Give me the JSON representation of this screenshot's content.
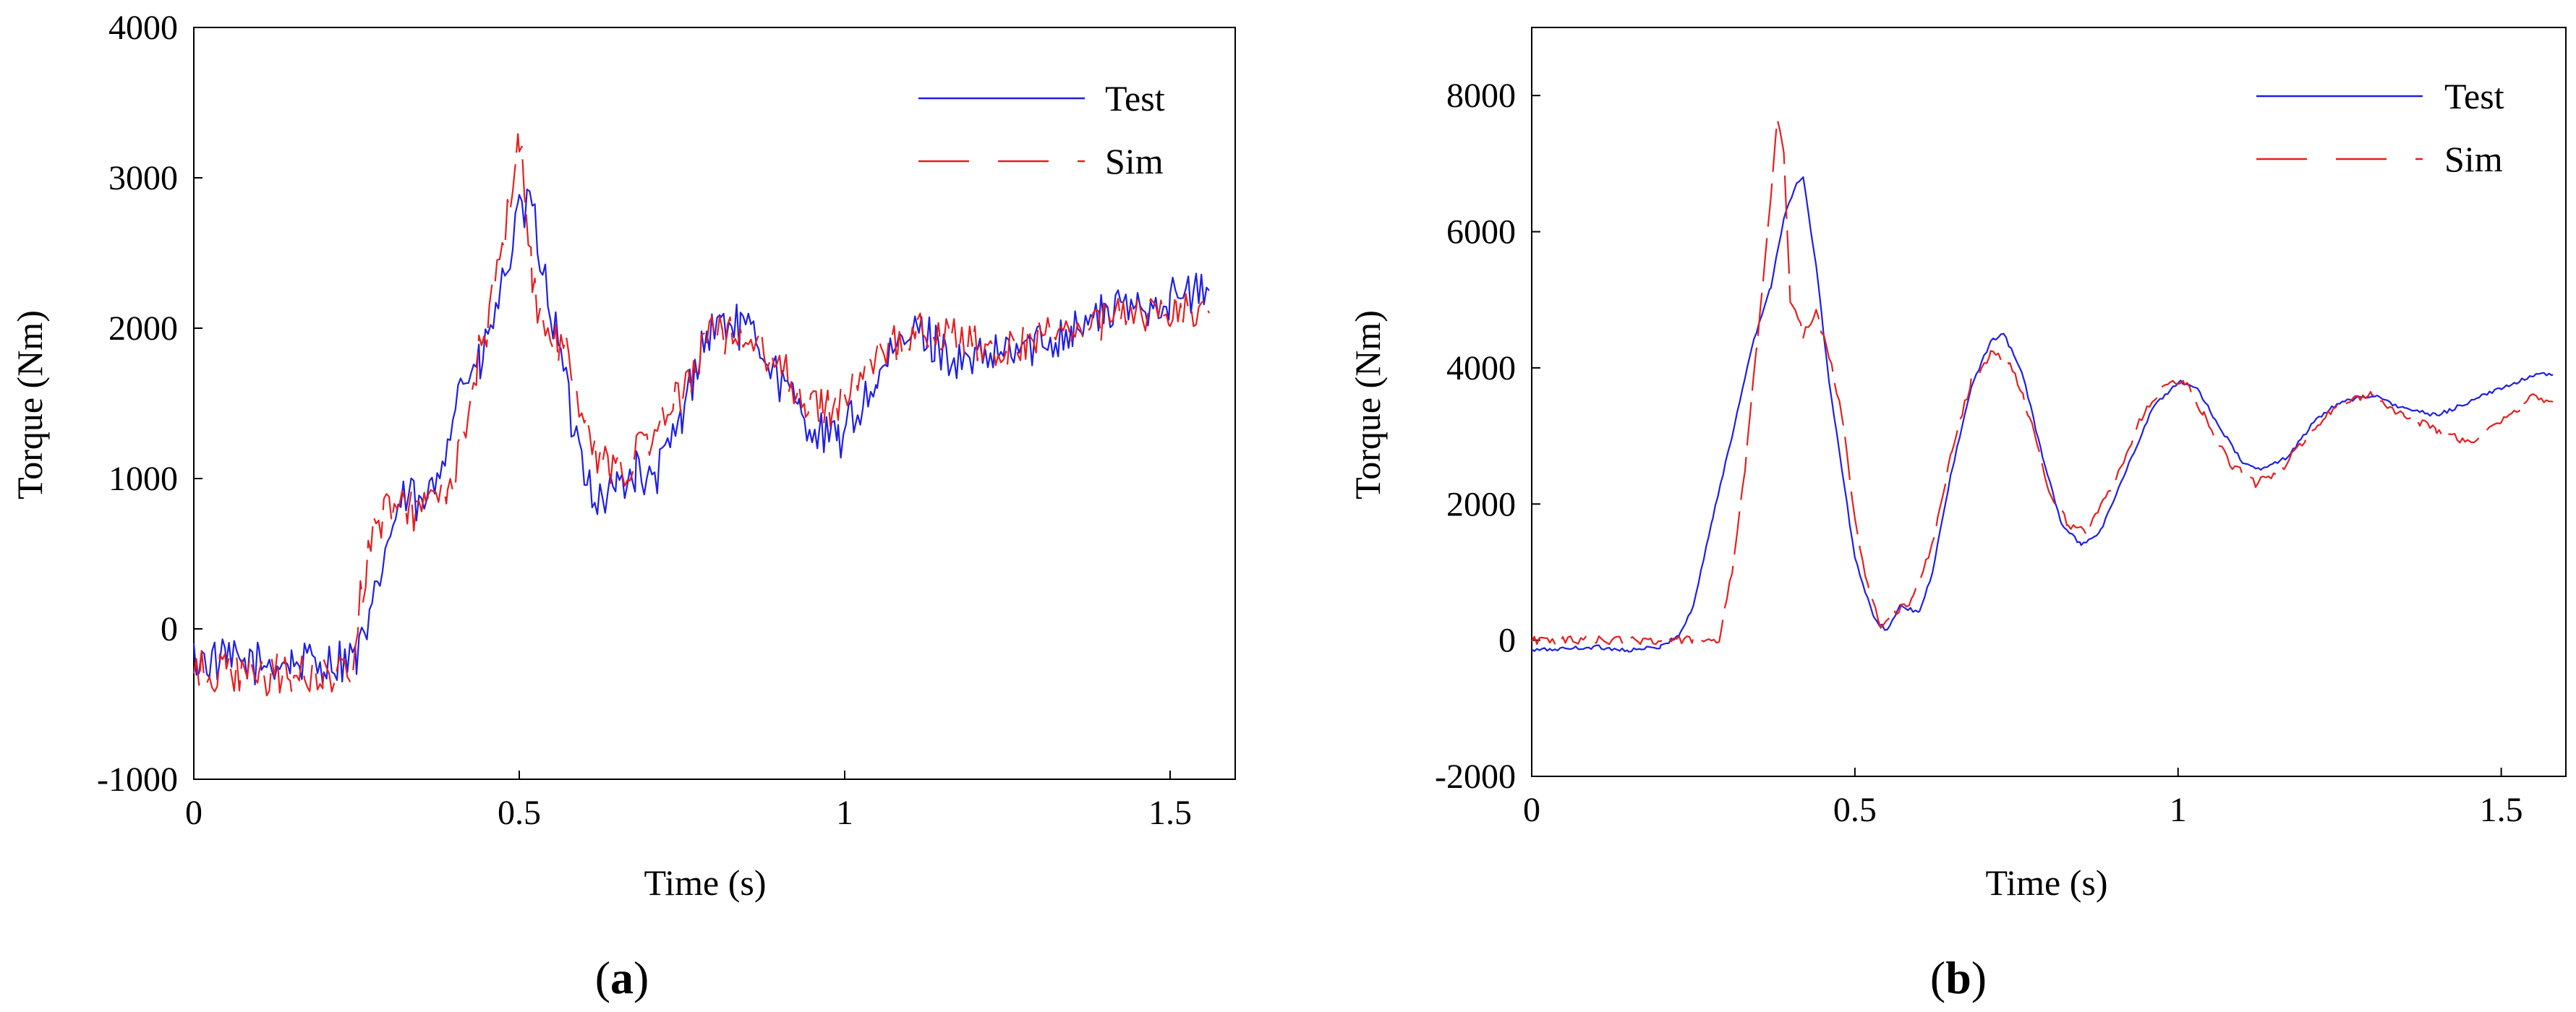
{
  "chart_data": [
    {
      "type": "line",
      "panel": "a",
      "panel_label": {
        "open": "(",
        "letter": "a",
        "close": ")"
      },
      "xlabel": "Time (s)",
      "ylabel": "Torque (Nm)",
      "xlim": [
        0,
        1.6
      ],
      "ylim": [
        -1000,
        4000
      ],
      "xticks": [
        0,
        0.5,
        1,
        1.5
      ],
      "xtick_labels": [
        "0",
        "0.5",
        "1",
        "1.5"
      ],
      "yticks": [
        -1000,
        0,
        1000,
        2000,
        3000,
        4000
      ],
      "ytick_labels": [
        "-1000",
        "0",
        "1000",
        "2000",
        "3000",
        "4000"
      ],
      "legend": {
        "position": "top-right",
        "entries": [
          "Test",
          "Sim"
        ]
      },
      "series": [
        {
          "name": "Test",
          "color": "#1f1fe6",
          "style": "solid",
          "noise": 150,
          "points": [
            [
              0,
              -200
            ],
            [
              0.05,
              -220
            ],
            [
              0.1,
              -230
            ],
            [
              0.15,
              -220
            ],
            [
              0.2,
              -230
            ],
            [
              0.25,
              -180
            ],
            [
              0.27,
              0
            ],
            [
              0.29,
              450
            ],
            [
              0.31,
              750
            ],
            [
              0.33,
              900
            ],
            [
              0.35,
              780
            ],
            [
              0.37,
              950
            ],
            [
              0.39,
              1300
            ],
            [
              0.41,
              1650
            ],
            [
              0.44,
              1750
            ],
            [
              0.47,
              2200
            ],
            [
              0.5,
              2750
            ],
            [
              0.52,
              2800
            ],
            [
              0.54,
              2300
            ],
            [
              0.56,
              1900
            ],
            [
              0.58,
              1400
            ],
            [
              0.6,
              1100
            ],
            [
              0.62,
              850
            ],
            [
              0.65,
              950
            ],
            [
              0.68,
              1050
            ],
            [
              0.7,
              950
            ],
            [
              0.72,
              1100
            ],
            [
              0.75,
              1400
            ],
            [
              0.78,
              1900
            ],
            [
              0.81,
              2050
            ],
            [
              0.84,
              2000
            ],
            [
              0.87,
              1900
            ],
            [
              0.9,
              1650
            ],
            [
              0.93,
              1450
            ],
            [
              0.96,
              1300
            ],
            [
              0.99,
              1250
            ],
            [
              1.02,
              1450
            ],
            [
              1.05,
              1650
            ],
            [
              1.08,
              1850
            ],
            [
              1.11,
              2000
            ],
            [
              1.14,
              1900
            ],
            [
              1.18,
              1750
            ],
            [
              1.22,
              1800
            ],
            [
              1.26,
              1850
            ],
            [
              1.3,
              1900
            ],
            [
              1.35,
              2000
            ],
            [
              1.4,
              2100
            ],
            [
              1.45,
              2150
            ],
            [
              1.5,
              2200
            ],
            [
              1.56,
              2250
            ]
          ]
        },
        {
          "name": "Sim",
          "color": "#e61f1f",
          "style": "dash",
          "noise": 140,
          "points": [
            [
              0,
              -280
            ],
            [
              0.05,
              -300
            ],
            [
              0.1,
              -320
            ],
            [
              0.15,
              -300
            ],
            [
              0.2,
              -320
            ],
            [
              0.24,
              -300
            ],
            [
              0.26,
              300
            ],
            [
              0.28,
              700
            ],
            [
              0.3,
              800
            ],
            [
              0.33,
              780
            ],
            [
              0.36,
              800
            ],
            [
              0.39,
              900
            ],
            [
              0.41,
              1200
            ],
            [
              0.43,
              1700
            ],
            [
              0.45,
              2000
            ],
            [
              0.47,
              2400
            ],
            [
              0.49,
              3000
            ],
            [
              0.5,
              3300
            ],
            [
              0.51,
              2900
            ],
            [
              0.52,
              2300
            ],
            [
              0.54,
              1950
            ],
            [
              0.56,
              1900
            ],
            [
              0.58,
              1800
            ],
            [
              0.6,
              1350
            ],
            [
              0.62,
              1100
            ],
            [
              0.65,
              1050
            ],
            [
              0.68,
              1150
            ],
            [
              0.72,
              1350
            ],
            [
              0.76,
              1650
            ],
            [
              0.8,
              2000
            ],
            [
              0.84,
              1900
            ],
            [
              0.88,
              1850
            ],
            [
              0.91,
              1700
            ],
            [
              0.94,
              1500
            ],
            [
              0.97,
              1450
            ],
            [
              1.0,
              1550
            ],
            [
              1.04,
              1750
            ],
            [
              1.08,
              1900
            ],
            [
              1.12,
              2000
            ],
            [
              1.16,
              1950
            ],
            [
              1.2,
              1900
            ],
            [
              1.25,
              1850
            ],
            [
              1.3,
              1950
            ],
            [
              1.35,
              2000
            ],
            [
              1.4,
              2050
            ],
            [
              1.45,
              2100
            ],
            [
              1.5,
              2100
            ],
            [
              1.56,
              2100
            ]
          ]
        }
      ]
    },
    {
      "type": "line",
      "panel": "b",
      "panel_label": {
        "open": "(",
        "letter": "b",
        "close": ")"
      },
      "xlabel": "Time (s)",
      "ylabel": "Torque (Nm)",
      "xlim": [
        0,
        1.6
      ],
      "ylim": [
        -2000,
        9000
      ],
      "xticks": [
        0,
        0.5,
        1,
        1.5
      ],
      "xtick_labels": [
        "0",
        "0.5",
        "1",
        "1.5"
      ],
      "yticks": [
        -2000,
        0,
        2000,
        4000,
        6000,
        8000
      ],
      "ytick_labels": [
        "-2000",
        "0",
        "2000",
        "4000",
        "6000",
        "8000"
      ],
      "legend": {
        "position": "top-right",
        "entries": [
          "Test",
          "Sim"
        ]
      },
      "series": [
        {
          "name": "Test",
          "color": "#1f1fe6",
          "style": "solid",
          "noise": 30,
          "points": [
            [
              0,
              -150
            ],
            [
              0.1,
              -100
            ],
            [
              0.15,
              -150
            ],
            [
              0.2,
              -100
            ],
            [
              0.23,
              100
            ],
            [
              0.25,
              500
            ],
            [
              0.28,
              1800
            ],
            [
              0.31,
              3000
            ],
            [
              0.34,
              4300
            ],
            [
              0.37,
              5200
            ],
            [
              0.39,
              6200
            ],
            [
              0.41,
              6700
            ],
            [
              0.42,
              6800
            ],
            [
              0.44,
              5500
            ],
            [
              0.46,
              3800
            ],
            [
              0.48,
              2500
            ],
            [
              0.5,
              1200
            ],
            [
              0.53,
              300
            ],
            [
              0.55,
              150
            ],
            [
              0.57,
              500
            ],
            [
              0.6,
              400
            ],
            [
              0.62,
              1000
            ],
            [
              0.65,
              2500
            ],
            [
              0.68,
              3700
            ],
            [
              0.71,
              4400
            ],
            [
              0.73,
              4500
            ],
            [
              0.76,
              3900
            ],
            [
              0.79,
              2700
            ],
            [
              0.82,
              1700
            ],
            [
              0.85,
              1400
            ],
            [
              0.88,
              1600
            ],
            [
              0.92,
              2500
            ],
            [
              0.96,
              3400
            ],
            [
              1.0,
              3800
            ],
            [
              1.03,
              3700
            ],
            [
              1.06,
              3200
            ],
            [
              1.1,
              2600
            ],
            [
              1.13,
              2500
            ],
            [
              1.17,
              2700
            ],
            [
              1.21,
              3200
            ],
            [
              1.25,
              3500
            ],
            [
              1.3,
              3600
            ],
            [
              1.35,
              3400
            ],
            [
              1.4,
              3300
            ],
            [
              1.45,
              3500
            ],
            [
              1.5,
              3700
            ],
            [
              1.55,
              3900
            ],
            [
              1.58,
              3900
            ]
          ]
        },
        {
          "name": "Sim",
          "color": "#e61f1f",
          "style": "dash",
          "noise": 60,
          "points": [
            [
              0,
              0
            ],
            [
              0.1,
              0
            ],
            [
              0.2,
              0
            ],
            [
              0.25,
              0
            ],
            [
              0.29,
              0
            ],
            [
              0.31,
              1000
            ],
            [
              0.33,
              2500
            ],
            [
              0.35,
              4500
            ],
            [
              0.37,
              6500
            ],
            [
              0.38,
              7700
            ],
            [
              0.39,
              7200
            ],
            [
              0.4,
              5000
            ],
            [
              0.42,
              4500
            ],
            [
              0.44,
              4800
            ],
            [
              0.46,
              4200
            ],
            [
              0.48,
              3300
            ],
            [
              0.5,
              1800
            ],
            [
              0.52,
              800
            ],
            [
              0.54,
              200
            ],
            [
              0.56,
              400
            ],
            [
              0.59,
              600
            ],
            [
              0.62,
              1400
            ],
            [
              0.65,
              2800
            ],
            [
              0.68,
              3800
            ],
            [
              0.71,
              4200
            ],
            [
              0.74,
              4100
            ],
            [
              0.77,
              3300
            ],
            [
              0.8,
              2200
            ],
            [
              0.83,
              1700
            ],
            [
              0.86,
              1600
            ],
            [
              0.9,
              2300
            ],
            [
              0.94,
              3200
            ],
            [
              0.98,
              3800
            ],
            [
              1.01,
              3800
            ],
            [
              1.04,
              3300
            ],
            [
              1.08,
              2600
            ],
            [
              1.12,
              2300
            ],
            [
              1.16,
              2500
            ],
            [
              1.2,
              3000
            ],
            [
              1.25,
              3500
            ],
            [
              1.3,
              3600
            ],
            [
              1.35,
              3300
            ],
            [
              1.4,
              3100
            ],
            [
              1.45,
              2900
            ],
            [
              1.5,
              3200
            ],
            [
              1.55,
              3600
            ],
            [
              1.58,
              3500
            ]
          ]
        }
      ]
    }
  ]
}
